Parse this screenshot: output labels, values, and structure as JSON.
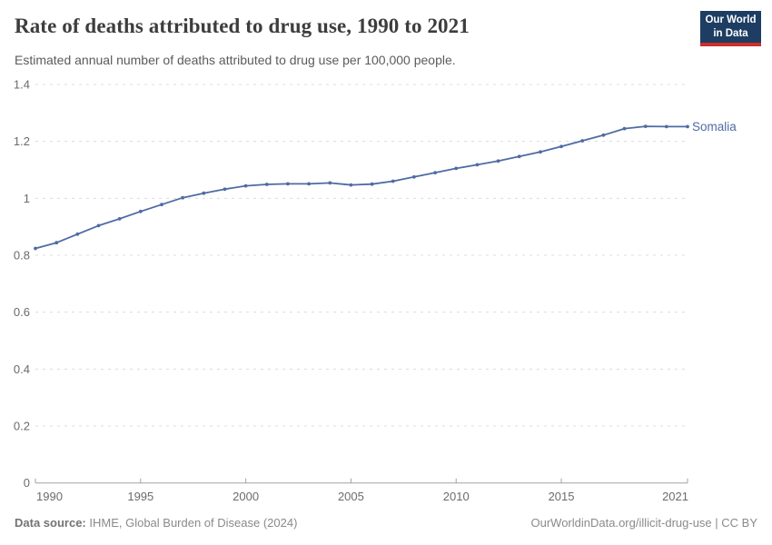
{
  "header": {
    "title": "Rate of deaths attributed to drug use, 1990 to 2021",
    "subtitle": "Estimated annual number of deaths attributed to drug use per 100,000 people.",
    "logo": {
      "line1": "Our World",
      "line2": "in Data",
      "bg_color": "#1d3d63",
      "bar_color": "#c9302c"
    }
  },
  "chart_data": {
    "type": "line",
    "title": "Rate of deaths attributed to drug use, 1990 to 2021",
    "x": [
      1990,
      1991,
      1992,
      1993,
      1994,
      1995,
      1996,
      1997,
      1998,
      1999,
      2000,
      2001,
      2002,
      2003,
      2004,
      2005,
      2006,
      2007,
      2008,
      2009,
      2010,
      2011,
      2012,
      2013,
      2014,
      2015,
      2016,
      2017,
      2018,
      2019,
      2020,
      2021
    ],
    "series": [
      {
        "name": "Somalia",
        "color": "#4f6ba3",
        "values": [
          0.824,
          0.844,
          0.874,
          0.904,
          0.928,
          0.954,
          0.978,
          1.002,
          1.018,
          1.032,
          1.044,
          1.049,
          1.051,
          1.051,
          1.054,
          1.047,
          1.05,
          1.06,
          1.075,
          1.09,
          1.105,
          1.118,
          1.131,
          1.147,
          1.163,
          1.182,
          1.202,
          1.222,
          1.245,
          1.253,
          1.252,
          1.252
        ]
      }
    ],
    "xlabel": "",
    "ylabel": "",
    "xlim": [
      1990,
      2021
    ],
    "ylim": [
      0,
      1.4
    ],
    "x_ticks": [
      1990,
      1995,
      2000,
      2005,
      2010,
      2015,
      2021
    ],
    "y_ticks": [
      0,
      0.2,
      0.4,
      0.6,
      0.8,
      1,
      1.2,
      1.4
    ],
    "grid": "horizontal-dashed",
    "grid_color": "#dcdcdc",
    "axis_color": "#a3a3a3",
    "tick_label_color": "#6b6b6b",
    "legend_position": "end-of-line"
  },
  "footer": {
    "source_label": "Data source:",
    "source_text": " IHME, Global Burden of Disease (2024)",
    "credit": "OurWorldinData.org/illicit-drug-use | CC BY"
  }
}
